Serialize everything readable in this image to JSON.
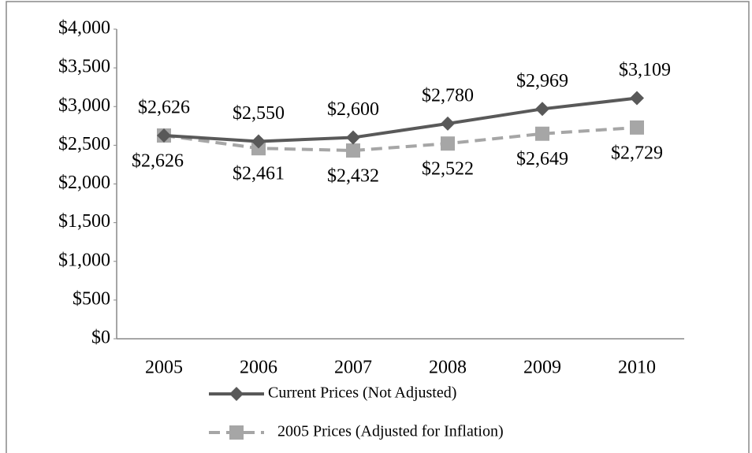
{
  "chart_data": {
    "type": "line",
    "categories": [
      "2005",
      "2006",
      "2007",
      "2008",
      "2009",
      "2010"
    ],
    "series": [
      {
        "name": "Current Prices (Not Adjusted)",
        "color": "#595959",
        "dash": false,
        "marker": "diamond",
        "values": [
          2626,
          2550,
          2600,
          2780,
          2969,
          3109
        ],
        "value_labels": [
          "$2,626",
          "$2,550",
          "$2,600",
          "$2,780",
          "$2,969",
          "$3,109"
        ]
      },
      {
        "name": "2005 Prices (Adjusted for Inflation)",
        "color": "#a6a6a6",
        "dash": true,
        "marker": "square",
        "values": [
          2626,
          2461,
          2432,
          2522,
          2649,
          2729
        ],
        "value_labels": [
          "$2,626",
          "$2,461",
          "$2,432",
          "$2,522",
          "$2,649",
          "$2,729"
        ]
      }
    ],
    "ylim": [
      0,
      4000
    ],
    "yticks": [
      {
        "value": 0,
        "label": "$0"
      },
      {
        "value": 500,
        "label": "$500"
      },
      {
        "value": 1000,
        "label": "$1,000"
      },
      {
        "value": 1500,
        "label": "$1,500"
      },
      {
        "value": 2000,
        "label": "$2,000"
      },
      {
        "value": 2500,
        "label": "$2,500"
      },
      {
        "value": 3000,
        "label": "$3,000"
      },
      {
        "value": 3500,
        "label": "$3,500"
      },
      {
        "value": 4000,
        "label": "$4,000"
      }
    ],
    "grid": false,
    "legend": "bottom"
  }
}
